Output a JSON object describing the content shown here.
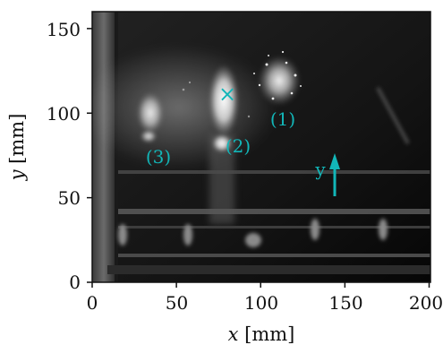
{
  "image": {
    "kind": "grayscale photo of a dark enclosure with three bright light spots",
    "accent_color": "#12b6b8"
  },
  "axes": {
    "x": {
      "label_var": "x",
      "label_unit": "[mm]",
      "range": [
        0,
        200
      ],
      "ticks": [
        "0",
        "50",
        "100",
        "150",
        "200"
      ]
    },
    "y": {
      "label_var": "y",
      "label_unit": "[mm]",
      "range": [
        0,
        160
      ],
      "ticks": [
        "0",
        "50",
        "100",
        "150"
      ]
    }
  },
  "annotations": {
    "spot_labels": [
      "(1)",
      "(2)",
      "(3)"
    ],
    "marker": "×",
    "arrow_label": "y"
  }
}
